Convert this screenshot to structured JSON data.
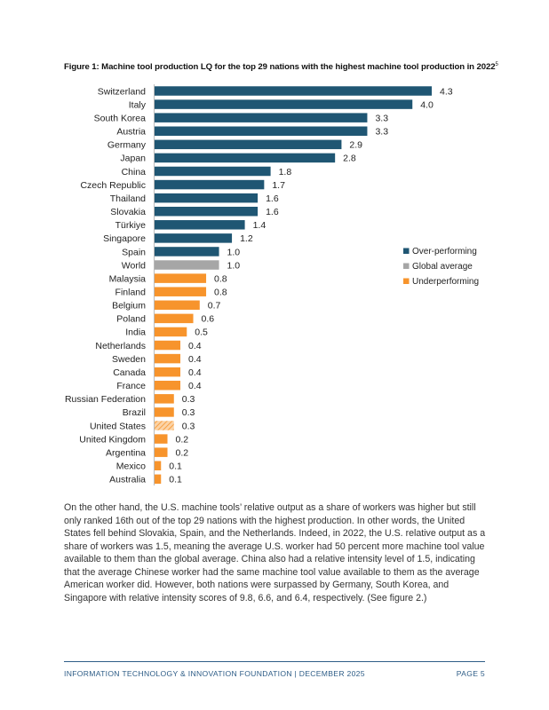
{
  "figure": {
    "title": "Figure 1: Machine tool production LQ for the top 29 nations with the highest machine tool production in 2022",
    "footnote_ref": "5"
  },
  "chart_data": {
    "type": "bar",
    "orientation": "horizontal",
    "title": "Figure 1: Machine tool production LQ for the top 29 nations with the highest machine tool production in 2022",
    "categories": [
      "Switzerland",
      "Italy",
      "South Korea",
      "Austria",
      "Germany",
      "Japan",
      "China",
      "Czech Republic",
      "Thailand",
      "Slovakia",
      "Türkiye",
      "Singapore",
      "Spain",
      "World",
      "Malaysia",
      "Finland",
      "Belgium",
      "Poland",
      "India",
      "Netherlands",
      "Sweden",
      "Canada",
      "France",
      "Russian Federation",
      "Brazil",
      "United States",
      "United Kingdom",
      "Argentina",
      "Mexico",
      "Australia"
    ],
    "values": [
      4.3,
      4.0,
      3.3,
      3.3,
      2.9,
      2.8,
      1.8,
      1.7,
      1.6,
      1.6,
      1.4,
      1.2,
      1.0,
      1.0,
      0.8,
      0.8,
      0.7,
      0.6,
      0.5,
      0.4,
      0.4,
      0.4,
      0.4,
      0.3,
      0.3,
      0.3,
      0.2,
      0.2,
      0.1,
      0.1
    ],
    "labels": [
      "4.3",
      "4.0",
      "3.3",
      "3.3",
      "2.9",
      "2.8",
      "1.8",
      "1.7",
      "1.6",
      "1.6",
      "1.4",
      "1.2",
      "1.0",
      "1.0",
      "0.8",
      "0.8",
      "0.7",
      "0.6",
      "0.5",
      "0.4",
      "0.4",
      "0.4",
      "0.4",
      "0.3",
      "0.3",
      "0.3",
      "0.2",
      "0.2",
      "0.1",
      "0.1"
    ],
    "groups": [
      "over",
      "over",
      "over",
      "over",
      "over",
      "over",
      "over",
      "over",
      "over",
      "over",
      "over",
      "over",
      "over",
      "global",
      "under",
      "under",
      "under",
      "under",
      "under",
      "under",
      "under",
      "under",
      "under",
      "under",
      "under",
      "under_hatched",
      "under",
      "under",
      "under",
      "under"
    ],
    "xlim": [
      0,
      4.3
    ],
    "legend": [
      {
        "key": "over",
        "label": "Over-performing",
        "color": "#1f5673"
      },
      {
        "key": "global",
        "label": "Global average",
        "color": "#a6a6a6"
      },
      {
        "key": "under",
        "label": "Underperforming",
        "color": "#f7942c"
      }
    ],
    "legend_position": "right",
    "grid": false
  },
  "body": {
    "paragraph": "On the other hand, the U.S. machine tools’ relative output as a share of workers was higher but still only ranked 16th out of the top 29 nations with the highest production. In other words, the United States fell behind Slovakia, Spain, and the Netherlands. Indeed, in 2022, the U.S. relative output as a share of workers was 1.5, meaning the average U.S. worker had 50 percent more machine tool value available to them than the global average. China also had a relative intensity level of 1.5, indicating that the average Chinese worker had the same machine tool value available to them as the average American worker did. However, both nations were surpassed by Germany, South Korea, and Singapore with relative intensity scores of 9.8, 6.6, and 6.4, respectively. (See figure 2.)"
  },
  "footer": {
    "left": "INFORMATION TECHNOLOGY & INNOVATION FOUNDATION   |   DECEMBER 2025",
    "right": "PAGE 5"
  }
}
